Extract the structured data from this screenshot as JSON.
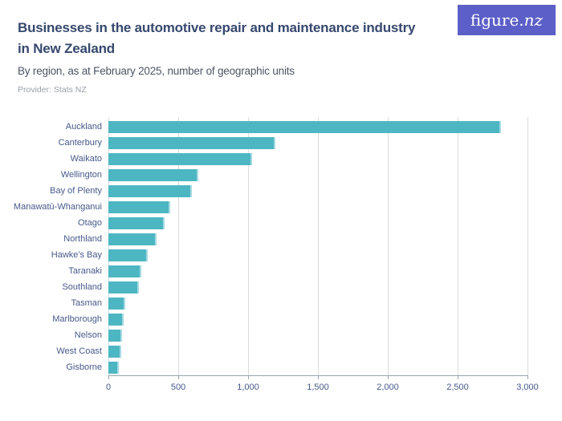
{
  "header": {
    "title_lines": [
      "Businesses in the automotive repair and maintenance industry",
      "in New Zealand"
    ],
    "subtitle": "By region, as at February 2025, number of geographic units",
    "provider": "Provider: Stats NZ"
  },
  "logo": {
    "text_regular": "figure.",
    "text_italic": "nz",
    "background": "#5b5fc7",
    "color": "#ffffff"
  },
  "colors": {
    "title": "#36486e",
    "axis_text": "#47598a",
    "bar": "#4db6c3",
    "bar_edge_highlight": "#a5dbe2",
    "gridline": "#dadddf",
    "axis_line": "#9aa3ad"
  },
  "chart_data": {
    "type": "bar",
    "orientation": "horizontal",
    "title": "Businesses in the automotive repair and maintenance industry in New Zealand",
    "subtitle": "By region, as at February 2025, number of geographic units",
    "xlabel": "",
    "ylabel": "",
    "grid": "vertical",
    "legend": "none",
    "xlim": [
      0,
      3000
    ],
    "xticks": [
      0,
      500,
      1000,
      1500,
      2000,
      2500,
      3000
    ],
    "xtick_labels": [
      "0",
      "500",
      "1,000",
      "1,500",
      "2,000",
      "2,500",
      "3,000"
    ],
    "categories": [
      "Auckland",
      "Canterbury",
      "Waikato",
      "Wellington",
      "Bay of Plenty",
      "Manawatū-Whanganui",
      "Otago",
      "Northland",
      "Hawke's Bay",
      "Taranaki",
      "Southland",
      "Tasman",
      "Marlborough",
      "Nelson",
      "West Coast",
      "Gisborne"
    ],
    "values": [
      2810,
      1195,
      1030,
      645,
      595,
      445,
      400,
      345,
      280,
      235,
      220,
      120,
      110,
      100,
      90,
      75
    ]
  }
}
